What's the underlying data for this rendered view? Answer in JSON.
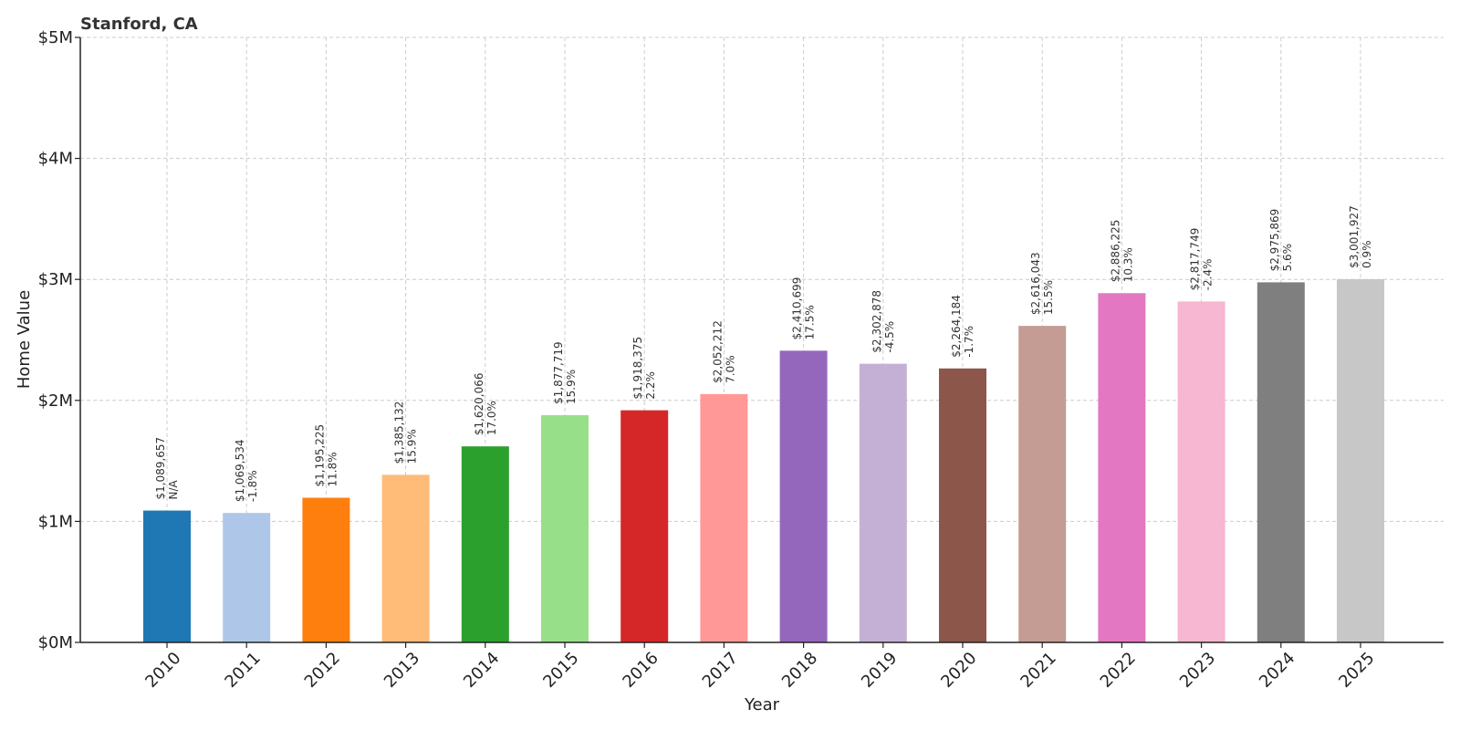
{
  "chart_data": {
    "type": "bar",
    "title": "Stanford, CA",
    "xlabel": "Year",
    "ylabel": "Home Value",
    "ylim": [
      0,
      5000000
    ],
    "grid": true,
    "yticks": [
      {
        "value": 0,
        "label": "$0M"
      },
      {
        "value": 1000000,
        "label": "$1M"
      },
      {
        "value": 2000000,
        "label": "$2M"
      },
      {
        "value": 3000000,
        "label": "$3M"
      },
      {
        "value": 4000000,
        "label": "$4M"
      },
      {
        "value": 5000000,
        "label": "$5M"
      }
    ],
    "categories": [
      "2010",
      "2011",
      "2012",
      "2013",
      "2014",
      "2015",
      "2016",
      "2017",
      "2018",
      "2019",
      "2020",
      "2021",
      "2022",
      "2023",
      "2024",
      "2025"
    ],
    "values": [
      1089657,
      1069534,
      1195225,
      1385132,
      1620066,
      1877719,
      1918375,
      2052212,
      2410699,
      2302878,
      2264184,
      2616043,
      2886225,
      2817749,
      2975869,
      3001927
    ],
    "value_labels": [
      "$1,089,657",
      "$1,069,534",
      "$1,195,225",
      "$1,385,132",
      "$1,620,066",
      "$1,877,719",
      "$1,918,375",
      "$2,052,212",
      "$2,410,699",
      "$2,302,878",
      "$2,264,184",
      "$2,616,043",
      "$2,886,225",
      "$2,817,749",
      "$2,975,869",
      "$3,001,927"
    ],
    "change_labels": [
      "N/A",
      "-1.8%",
      "11.8%",
      "15.9%",
      "17.0%",
      "15.9%",
      "2.2%",
      "7.0%",
      "17.5%",
      "-4.5%",
      "-1.7%",
      "15.5%",
      "10.3%",
      "-2.4%",
      "5.6%",
      "0.9%"
    ],
    "colors": [
      "#1f77b4",
      "#aec7e8",
      "#ff7f0e",
      "#ffbb78",
      "#2ca02c",
      "#98df8a",
      "#d62728",
      "#ff9896",
      "#9467bd",
      "#c5b0d5",
      "#8c564b",
      "#c49c94",
      "#e377c2",
      "#f7b6d2",
      "#7f7f7f",
      "#c7c7c7"
    ]
  }
}
